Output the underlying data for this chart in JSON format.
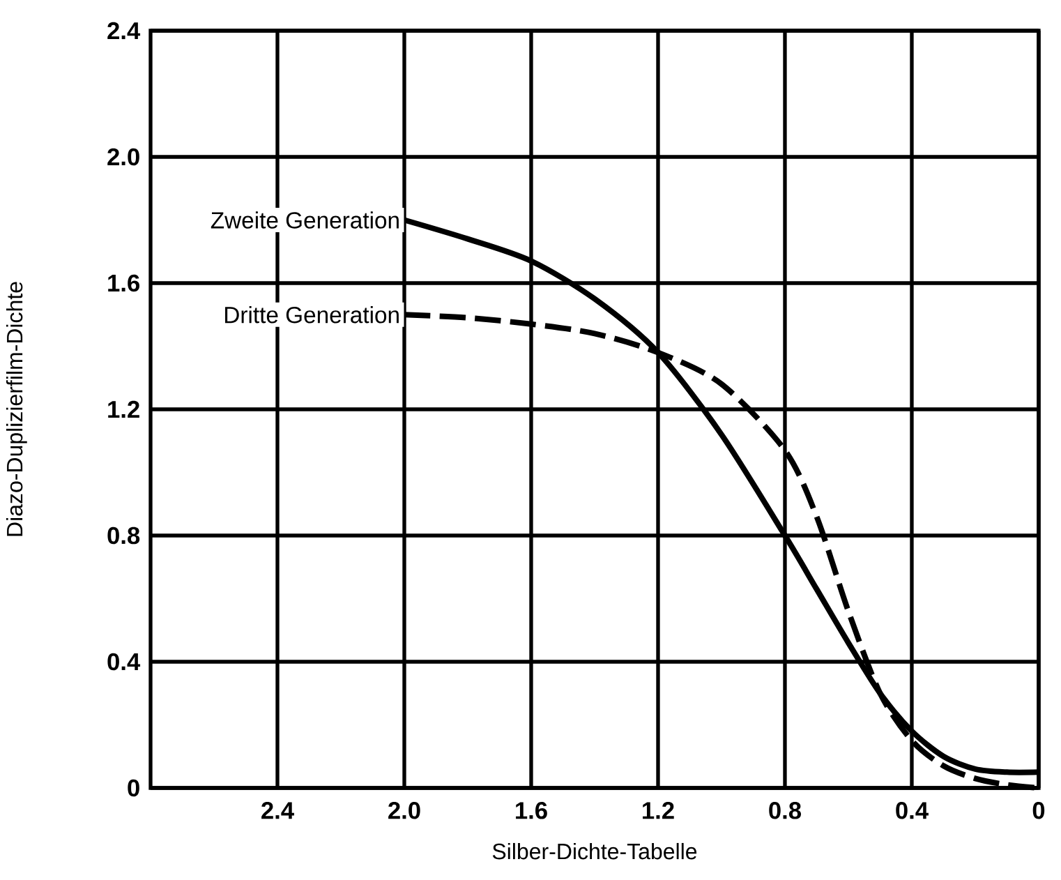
{
  "chart_data": {
    "type": "line",
    "xlabel": "Silber-Dichte-Tabelle",
    "ylabel": "Diazo-Duplizierfilm-Dichte",
    "xlim": [
      2.8,
      0
    ],
    "ylim": [
      0,
      2.4
    ],
    "xticks": [
      2.4,
      {
        "value": 2,
        "label": "2.0"
      },
      1.6,
      1.2,
      0.8,
      0.4,
      0
    ],
    "yticks": [
      0,
      0.4,
      0.8,
      1.2,
      1.6,
      {
        "value": 2,
        "label": "2.0"
      },
      2.4
    ],
    "grid": true,
    "series": [
      {
        "name": "Zweite Generation",
        "color": "#000000",
        "line_style": "solid",
        "x": [
          2.0,
          1.8,
          1.6,
          1.4,
          1.2,
          1.0,
          0.8,
          0.7,
          0.6,
          0.5,
          0.4,
          0.3,
          0.2,
          0.1,
          0.0
        ],
        "values": [
          1.8,
          1.74,
          1.67,
          1.55,
          1.38,
          1.12,
          0.8,
          0.63,
          0.46,
          0.3,
          0.18,
          0.1,
          0.06,
          0.05,
          0.05
        ]
      },
      {
        "name": "Dritte Generation",
        "color": "#000000",
        "line_style": "dashed",
        "x": [
          2.0,
          1.8,
          1.6,
          1.4,
          1.2,
          1.0,
          0.8,
          0.7,
          0.6,
          0.5,
          0.4,
          0.3,
          0.2,
          0.1,
          0.0
        ],
        "values": [
          1.5,
          1.49,
          1.47,
          1.44,
          1.38,
          1.28,
          1.07,
          0.86,
          0.56,
          0.3,
          0.15,
          0.07,
          0.03,
          0.01,
          0.0
        ]
      }
    ]
  }
}
